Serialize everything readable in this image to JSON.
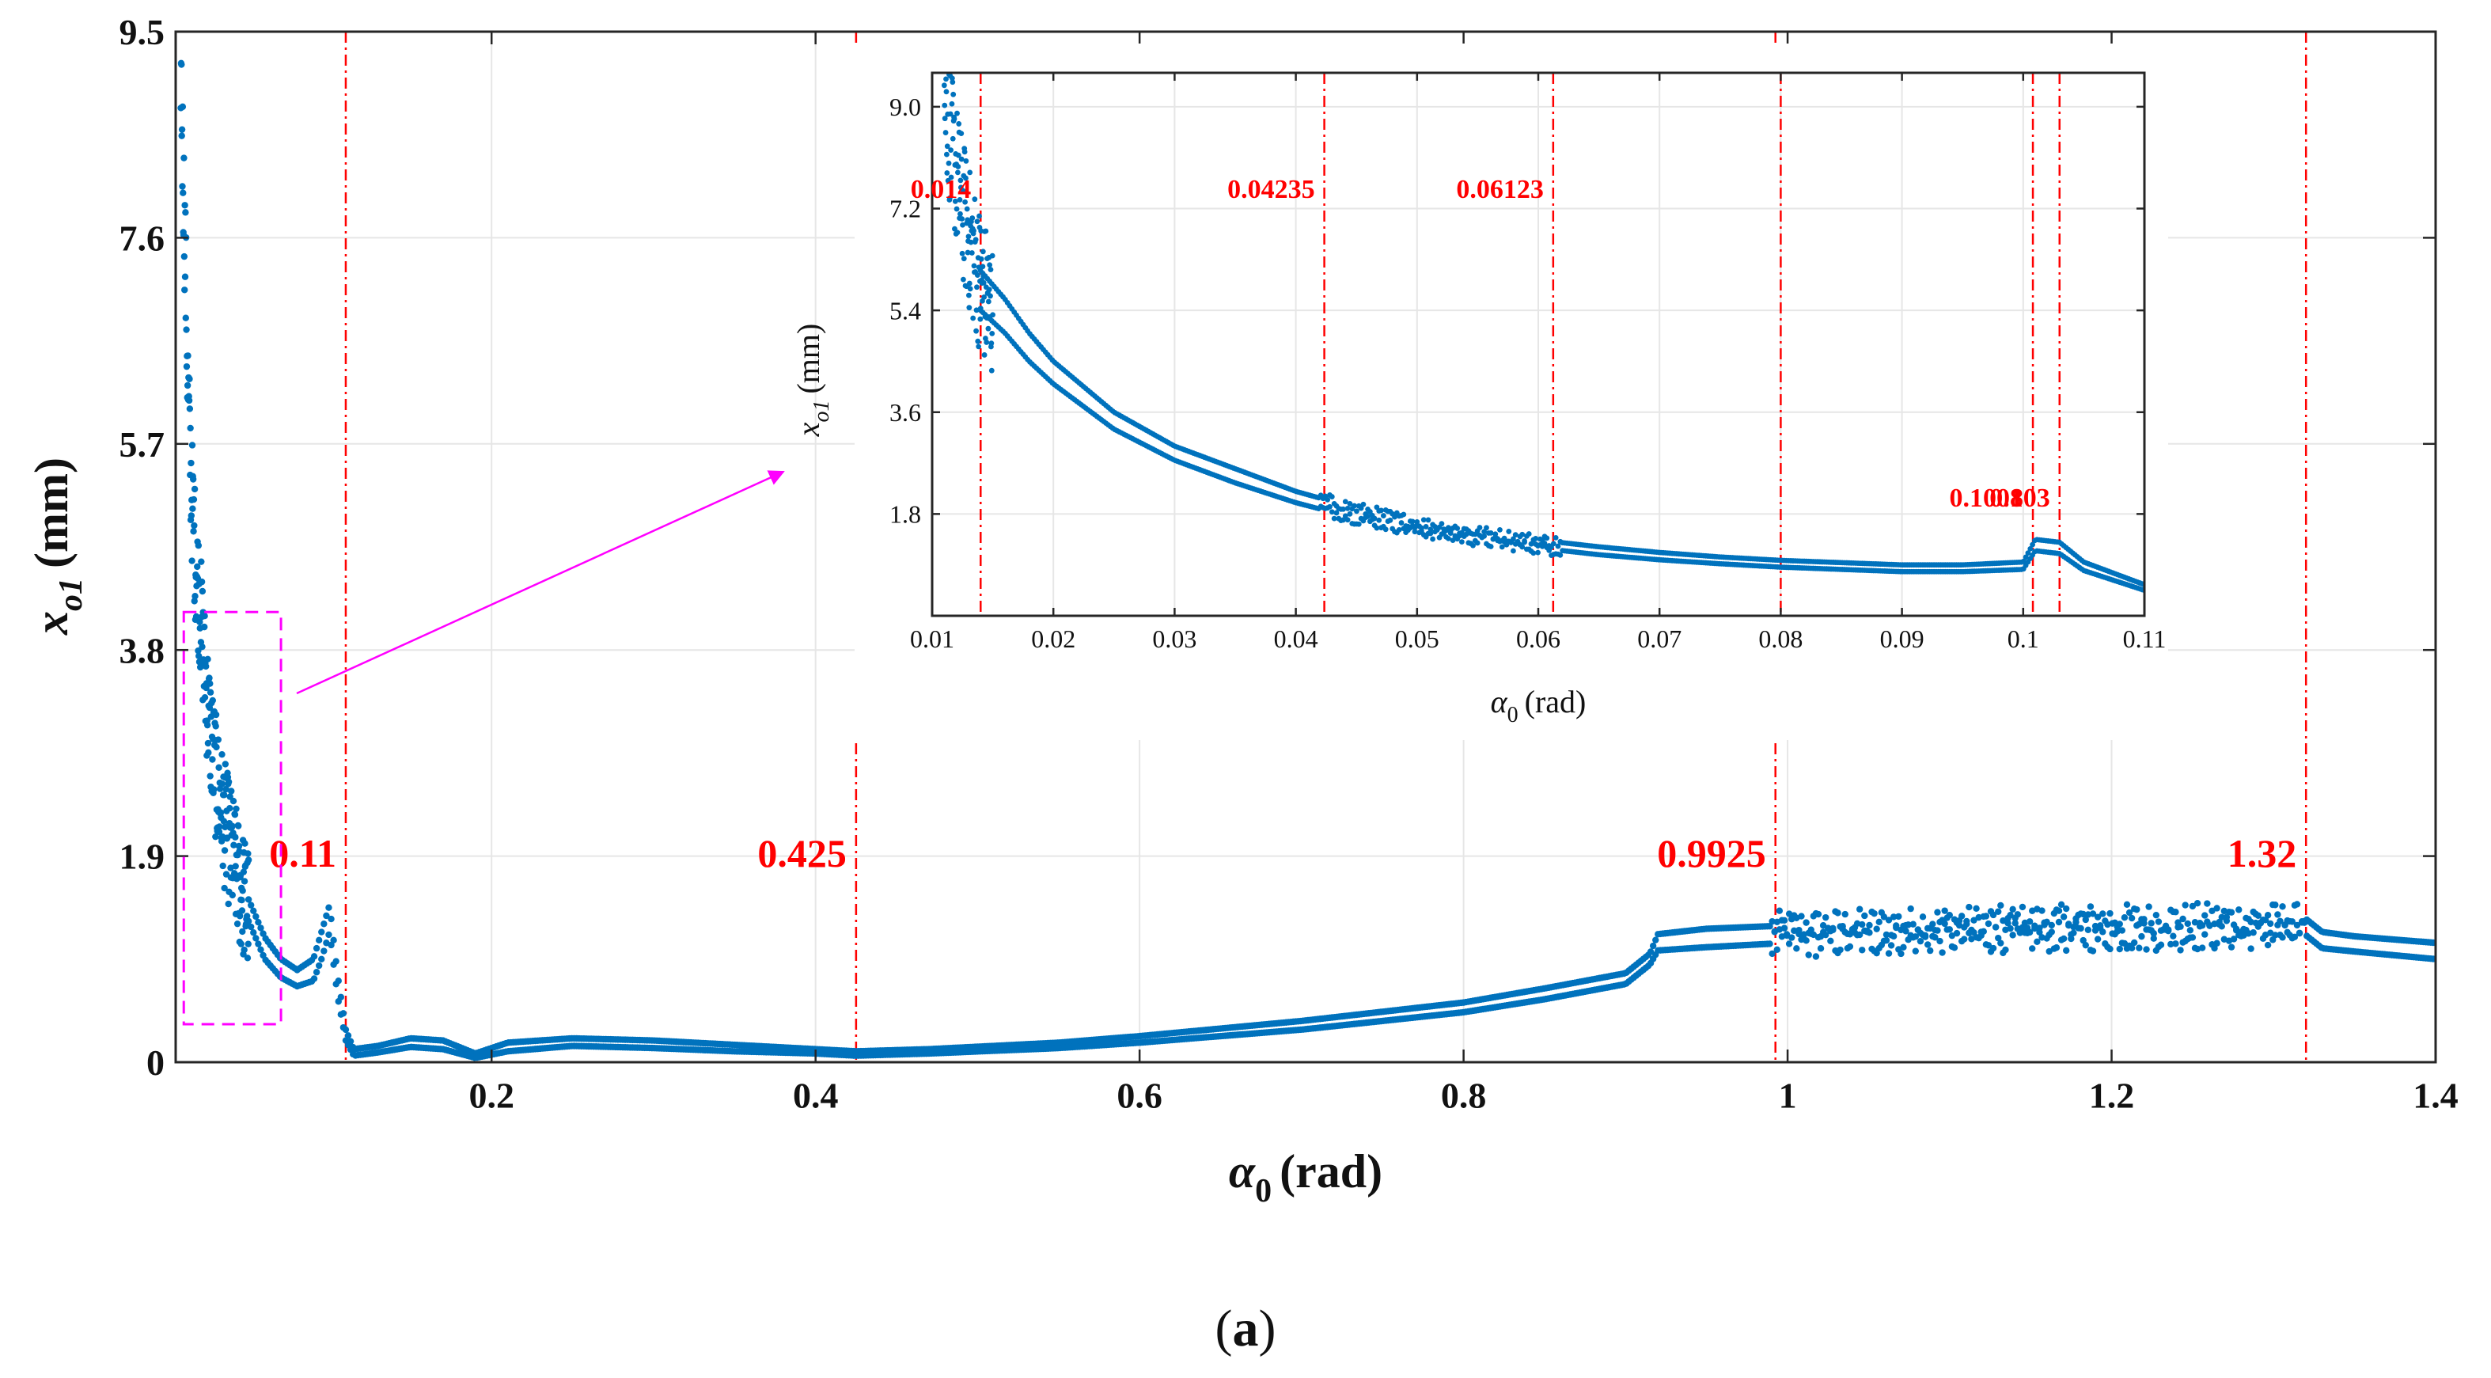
{
  "colors": {
    "data": "#0072bd",
    "marker": "#ff0000",
    "zoom": "#ff00ff",
    "axis": "#262626"
  },
  "chart_data": [
    {
      "type": "scatter",
      "name": "main",
      "xlabel": {
        "symbol": "α",
        "sub": "0",
        "unit": "(rad)"
      },
      "ylabel": {
        "symbol": "x",
        "sub": "o1",
        "unit": "(mm)"
      },
      "xlim": [
        0.005,
        1.4
      ],
      "ylim": [
        0,
        9.5
      ],
      "xticks": [
        0.2,
        0.4,
        0.6,
        0.8,
        1,
        1.2,
        1.4
      ],
      "xtick_labels": [
        "0.2",
        "0.4",
        "0.6",
        "0.8",
        "1",
        "1.2",
        "1.4"
      ],
      "yticks": [
        0,
        1.9,
        3.8,
        5.7,
        7.6,
        9.5
      ],
      "ytick_labels": [
        "0",
        "1.9",
        "3.8",
        "5.7",
        "7.6",
        "9.5"
      ],
      "grid": true,
      "vlines": [
        {
          "x": 0.11,
          "label": "0.11"
        },
        {
          "x": 0.425,
          "label": "0.425"
        },
        {
          "x": 0.9925,
          "label": "0.9925"
        },
        {
          "x": 1.32,
          "label": "1.32"
        }
      ],
      "zoom_box": {
        "x0": 0.01,
        "x1": 0.07,
        "y0": 0.35,
        "y1": 4.15
      },
      "series": [
        {
          "name": "upper branch",
          "x": [
            0.05,
            0.06,
            0.07,
            0.08,
            0.09,
            0.1,
            0.105,
            0.11,
            0.115,
            0.13,
            0.15,
            0.17,
            0.19,
            0.21,
            0.25,
            0.3,
            0.35,
            0.4,
            0.425,
            0.47,
            0.55,
            0.6,
            0.7,
            0.8,
            0.85,
            0.9,
            0.915,
            0.92,
            0.95,
            1.0,
            1.05,
            1.1,
            1.15,
            1.2,
            1.25,
            1.3,
            1.32,
            1.33,
            1.35,
            1.4
          ],
          "y": [
            1.5,
            1.15,
            0.95,
            0.85,
            0.95,
            1.45,
            0.8,
            0.3,
            0.12,
            0.15,
            0.22,
            0.2,
            0.08,
            0.18,
            0.22,
            0.2,
            0.16,
            0.12,
            0.1,
            0.12,
            0.18,
            0.24,
            0.38,
            0.55,
            0.68,
            0.82,
            1.0,
            1.18,
            1.23,
            1.26,
            1.28,
            1.3,
            1.31,
            1.32,
            1.33,
            1.33,
            1.32,
            1.2,
            1.16,
            1.1
          ]
        },
        {
          "name": "lower branch",
          "x": [
            0.05,
            0.06,
            0.07,
            0.08,
            0.09,
            0.095,
            0.1,
            0.105,
            0.11,
            0.115,
            0.13,
            0.15,
            0.17,
            0.19,
            0.21,
            0.25,
            0.3,
            0.35,
            0.4,
            0.425,
            0.47,
            0.55,
            0.6,
            0.7,
            0.8,
            0.85,
            0.9,
            0.915,
            0.92,
            0.95,
            1.0,
            1.05,
            1.1,
            1.15,
            1.2,
            1.25,
            1.3,
            1.32,
            1.33,
            1.35,
            1.4
          ],
          "y": [
            1.3,
            0.95,
            0.78,
            0.7,
            0.75,
            0.95,
            1.2,
            0.6,
            0.2,
            0.06,
            0.09,
            0.14,
            0.12,
            0.04,
            0.1,
            0.15,
            0.13,
            0.1,
            0.08,
            0.06,
            0.08,
            0.13,
            0.18,
            0.3,
            0.46,
            0.58,
            0.72,
            0.9,
            1.03,
            1.06,
            1.1,
            1.12,
            1.14,
            1.15,
            1.16,
            1.17,
            1.18,
            1.17,
            1.05,
            1.02,
            0.95
          ]
        },
        {
          "name": "scattered (chaotic) points",
          "x": [
            0.008,
            0.009,
            0.01,
            0.011,
            0.012,
            0.013,
            0.014,
            0.015,
            0.017,
            0.02,
            0.023,
            0.026,
            0.03,
            0.035,
            0.04,
            0.045,
            0.05
          ],
          "y": [
            9.4,
            8.6,
            8.0,
            7.4,
            6.6,
            6.0,
            5.6,
            5.2,
            4.7,
            4.2,
            3.6,
            3.1,
            2.6,
            2.2,
            1.9,
            1.6,
            1.4
          ]
        }
      ]
    },
    {
      "type": "scatter",
      "name": "inset",
      "xlabel": {
        "symbol": "α",
        "sub": "0",
        "unit": "(rad)"
      },
      "ylabel": {
        "symbol": "x",
        "sub": "o1",
        "unit": "(mm)"
      },
      "xlim": [
        0.01,
        0.11
      ],
      "ylim": [
        0,
        9.6
      ],
      "xticks": [
        0.01,
        0.02,
        0.03,
        0.04,
        0.05,
        0.06,
        0.07,
        0.08,
        0.09,
        0.1,
        0.11
      ],
      "xtick_labels": [
        "0.01",
        "0.02",
        "0.03",
        "0.04",
        "0.05",
        "0.06",
        "0.07",
        "0.08",
        "0.09",
        "0.1",
        "0.11"
      ],
      "yticks": [
        1.8,
        3.6,
        5.4,
        7.2,
        9.0
      ],
      "ytick_labels": [
        "1.8",
        "3.6",
        "5.4",
        "7.2",
        "9.0"
      ],
      "grid": true,
      "vlines": [
        {
          "x": 0.014,
          "label": "0.014"
        },
        {
          "x": 0.04235,
          "label": "0.04235"
        },
        {
          "x": 0.06123,
          "label": "0.06123"
        },
        {
          "x": 0.08,
          "label": ""
        },
        {
          "x": 0.1008,
          "label": "0.1008"
        },
        {
          "x": 0.103,
          "label": "0.103"
        }
      ],
      "series": [
        {
          "name": "upper branch",
          "x": [
            0.014,
            0.016,
            0.018,
            0.02,
            0.025,
            0.03,
            0.035,
            0.04,
            0.045,
            0.05,
            0.055,
            0.06,
            0.065,
            0.07,
            0.075,
            0.08,
            0.085,
            0.09,
            0.095,
            0.1,
            0.101,
            0.103,
            0.105,
            0.11
          ],
          "y": [
            6.1,
            5.6,
            5.0,
            4.5,
            3.6,
            3.0,
            2.6,
            2.2,
            1.9,
            1.65,
            1.48,
            1.34,
            1.22,
            1.12,
            1.04,
            0.98,
            0.94,
            0.9,
            0.9,
            0.95,
            1.35,
            1.3,
            0.95,
            0.55
          ]
        },
        {
          "name": "lower branch",
          "x": [
            0.014,
            0.016,
            0.018,
            0.02,
            0.025,
            0.03,
            0.035,
            0.04,
            0.045,
            0.05,
            0.055,
            0.06,
            0.065,
            0.07,
            0.075,
            0.08,
            0.085,
            0.09,
            0.095,
            0.1,
            0.101,
            0.103,
            0.105,
            0.11
          ],
          "y": [
            5.4,
            5.0,
            4.5,
            4.1,
            3.3,
            2.75,
            2.35,
            2.0,
            1.72,
            1.5,
            1.33,
            1.2,
            1.08,
            0.99,
            0.92,
            0.86,
            0.82,
            0.78,
            0.78,
            0.82,
            1.15,
            1.1,
            0.8,
            0.45
          ]
        },
        {
          "name": "scattered (chaotic) points",
          "x": [
            0.011,
            0.0115,
            0.012,
            0.0125,
            0.013,
            0.0135,
            0.014,
            0.0145,
            0.015
          ],
          "y": [
            9.3,
            8.5,
            7.8,
            7.2,
            6.7,
            6.3,
            5.9,
            5.6,
            5.3
          ]
        }
      ]
    }
  ],
  "figure_label": "(a)"
}
